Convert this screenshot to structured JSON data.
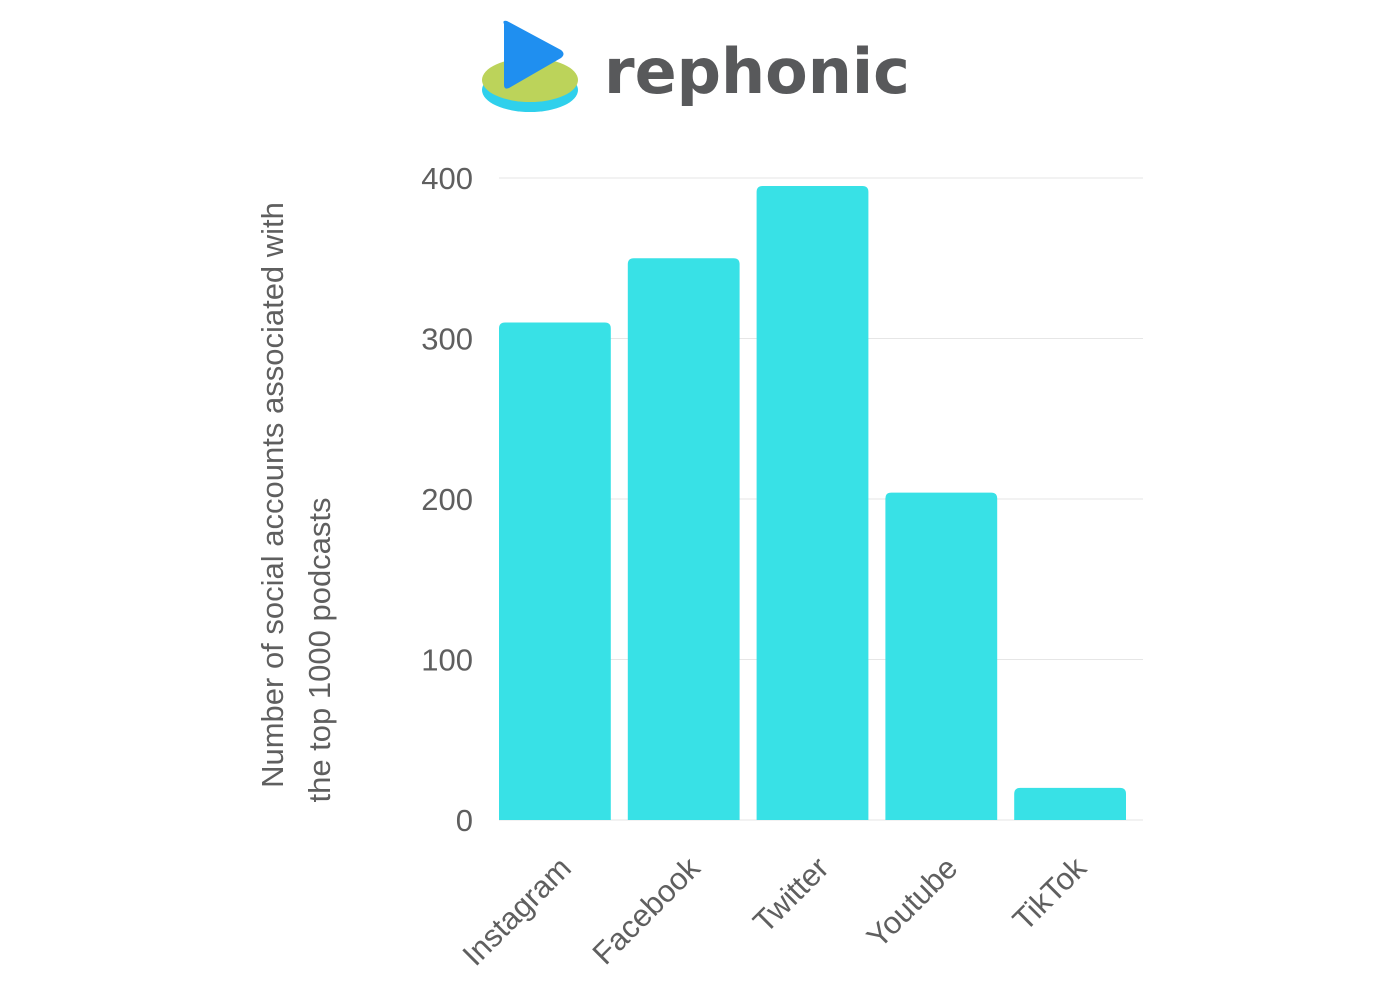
{
  "brand": {
    "name": "rephonic",
    "text_color": "#58595b",
    "logo_colors": {
      "play": "#1f8ff0",
      "disc_top": "#bcd35a",
      "disc_side": "#2fd0ec"
    }
  },
  "chart_data": {
    "type": "bar",
    "categories": [
      "Instagram",
      "Facebook",
      "Twitter",
      "Youtube",
      "TikTok"
    ],
    "values": [
      310,
      350,
      395,
      204,
      20
    ],
    "title": "",
    "xlabel": "",
    "ylabel": "Number of social accounts associated with the top 1000 podcasts",
    "ylabel_lines": [
      "Number of social accounts associated with",
      "the top 1000 podcasts"
    ],
    "ylim": [
      0,
      400
    ],
    "yticks": [
      0,
      100,
      200,
      300,
      400
    ],
    "grid": true,
    "legend": "none",
    "bar_color": "#38e1e6",
    "grid_color": "#e6e6e6",
    "text_color": "#5f5f5f"
  }
}
